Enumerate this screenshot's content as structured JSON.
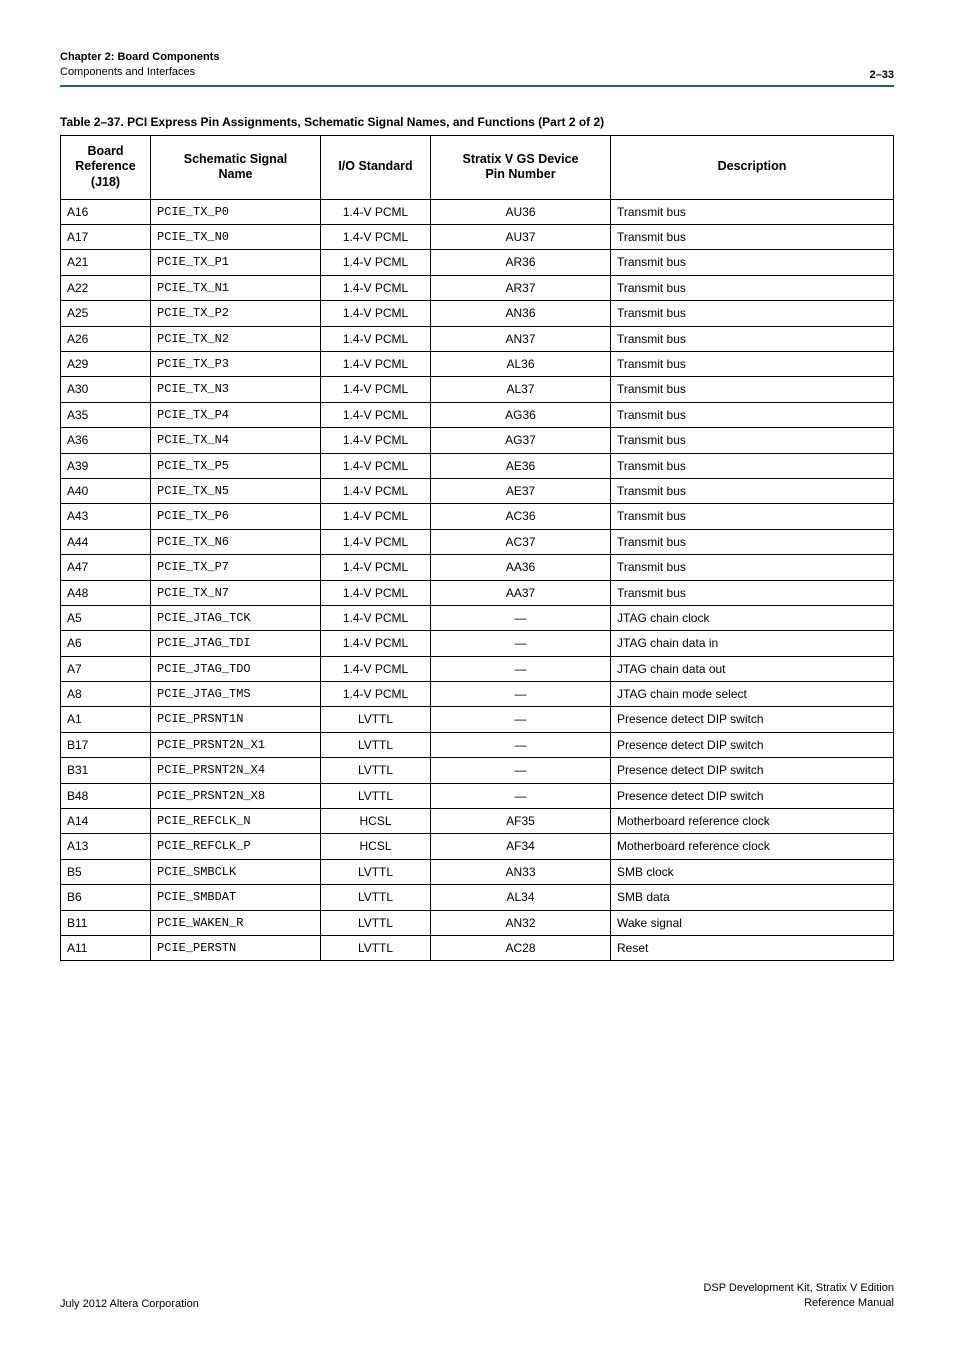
{
  "header": {
    "chapter": "Chapter 2: Board Components",
    "section": "Components and Interfaces",
    "pageNumber": "2–33"
  },
  "table": {
    "caption": "Table 2–37.  PCI Express Pin Assignments, Schematic Signal Names, and Functions  (Part 2 of 2)",
    "columns": {
      "ref": "Board\nReference\n(J18)",
      "sig": "Schematic Signal\nName",
      "io": "I/O Standard",
      "pin": "Stratix V GS Device\nPin Number",
      "desc": "Description"
    },
    "rows": [
      {
        "ref": "A16",
        "sig": "PCIE_TX_P0",
        "io": "1.4-V PCML",
        "pin": "AU36",
        "desc": "Transmit bus"
      },
      {
        "ref": "A17",
        "sig": "PCIE_TX_N0",
        "io": "1.4-V PCML",
        "pin": "AU37",
        "desc": "Transmit bus"
      },
      {
        "ref": "A21",
        "sig": "PCIE_TX_P1",
        "io": "1.4-V PCML",
        "pin": "AR36",
        "desc": "Transmit bus"
      },
      {
        "ref": "A22",
        "sig": "PCIE_TX_N1",
        "io": "1.4-V PCML",
        "pin": "AR37",
        "desc": "Transmit bus"
      },
      {
        "ref": "A25",
        "sig": "PCIE_TX_P2",
        "io": "1.4-V PCML",
        "pin": "AN36",
        "desc": "Transmit bus"
      },
      {
        "ref": "A26",
        "sig": "PCIE_TX_N2",
        "io": "1.4-V PCML",
        "pin": "AN37",
        "desc": "Transmit bus"
      },
      {
        "ref": "A29",
        "sig": "PCIE_TX_P3",
        "io": "1.4-V PCML",
        "pin": "AL36",
        "desc": "Transmit bus"
      },
      {
        "ref": "A30",
        "sig": "PCIE_TX_N3",
        "io": "1.4-V PCML",
        "pin": "AL37",
        "desc": "Transmit bus"
      },
      {
        "ref": "A35",
        "sig": "PCIE_TX_P4",
        "io": "1.4-V PCML",
        "pin": "AG36",
        "desc": "Transmit bus"
      },
      {
        "ref": "A36",
        "sig": "PCIE_TX_N4",
        "io": "1.4-V PCML",
        "pin": "AG37",
        "desc": "Transmit bus"
      },
      {
        "ref": "A39",
        "sig": "PCIE_TX_P5",
        "io": "1.4-V PCML",
        "pin": "AE36",
        "desc": "Transmit bus"
      },
      {
        "ref": "A40",
        "sig": "PCIE_TX_N5",
        "io": "1.4-V PCML",
        "pin": "AE37",
        "desc": "Transmit bus"
      },
      {
        "ref": "A43",
        "sig": "PCIE_TX_P6",
        "io": "1.4-V PCML",
        "pin": "AC36",
        "desc": "Transmit bus"
      },
      {
        "ref": "A44",
        "sig": "PCIE_TX_N6",
        "io": "1.4-V PCML",
        "pin": "AC37",
        "desc": "Transmit bus"
      },
      {
        "ref": "A47",
        "sig": "PCIE_TX_P7",
        "io": "1.4-V PCML",
        "pin": "AA36",
        "desc": "Transmit bus"
      },
      {
        "ref": "A48",
        "sig": "PCIE_TX_N7",
        "io": "1.4-V PCML",
        "pin": "AA37",
        "desc": "Transmit bus"
      },
      {
        "ref": "A5",
        "sig": "PCIE_JTAG_TCK",
        "io": "1.4-V PCML",
        "pin": "—",
        "desc": "JTAG chain clock"
      },
      {
        "ref": "A6",
        "sig": "PCIE_JTAG_TDI",
        "io": "1.4-V PCML",
        "pin": "—",
        "desc": "JTAG chain data in"
      },
      {
        "ref": "A7",
        "sig": "PCIE_JTAG_TDO",
        "io": "1.4-V PCML",
        "pin": "—",
        "desc": "JTAG chain data out"
      },
      {
        "ref": "A8",
        "sig": "PCIE_JTAG_TMS",
        "io": "1.4-V PCML",
        "pin": "—",
        "desc": "JTAG chain mode select"
      },
      {
        "ref": "A1",
        "sig": "PCIE_PRSNT1N",
        "io": "LVTTL",
        "pin": "—",
        "desc": "Presence detect DIP switch"
      },
      {
        "ref": "B17",
        "sig": "PCIE_PRSNT2N_X1",
        "io": "LVTTL",
        "pin": "—",
        "desc": "Presence detect DIP switch"
      },
      {
        "ref": "B31",
        "sig": "PCIE_PRSNT2N_X4",
        "io": "LVTTL",
        "pin": "—",
        "desc": "Presence detect DIP switch"
      },
      {
        "ref": "B48",
        "sig": "PCIE_PRSNT2N_X8",
        "io": "LVTTL",
        "pin": "—",
        "desc": "Presence detect DIP switch"
      },
      {
        "ref": "A14",
        "sig": "PCIE_REFCLK_N",
        "io": "HCSL",
        "pin": "AF35",
        "desc": "Motherboard reference clock"
      },
      {
        "ref": "A13",
        "sig": "PCIE_REFCLK_P",
        "io": "HCSL",
        "pin": "AF34",
        "desc": "Motherboard reference clock"
      },
      {
        "ref": "B5",
        "sig": "PCIE_SMBCLK",
        "io": "LVTTL",
        "pin": "AN33",
        "desc": "SMB clock"
      },
      {
        "ref": "B6",
        "sig": "PCIE_SMBDAT",
        "io": "LVTTL",
        "pin": "AL34",
        "desc": "SMB data"
      },
      {
        "ref": "B11",
        "sig": "PCIE_WAKEN_R",
        "io": "LVTTL",
        "pin": "AN32",
        "desc": "Wake signal"
      },
      {
        "ref": "A11",
        "sig": "PCIE_PERSTN",
        "io": "LVTTL",
        "pin": "AC28",
        "desc": "Reset"
      }
    ],
    "style": {
      "border_color": "#000000",
      "header_rule_color": "#1a5ea8",
      "background_color": "#ffffff",
      "body_fontsize": 12,
      "header_fontsize": 12.5,
      "mono_font": "Courier New"
    }
  },
  "footer": {
    "left": "July 2012   Altera Corporation",
    "rightLine1": "DSP Development Kit, Stratix V Edition",
    "rightLine2": "Reference Manual"
  }
}
